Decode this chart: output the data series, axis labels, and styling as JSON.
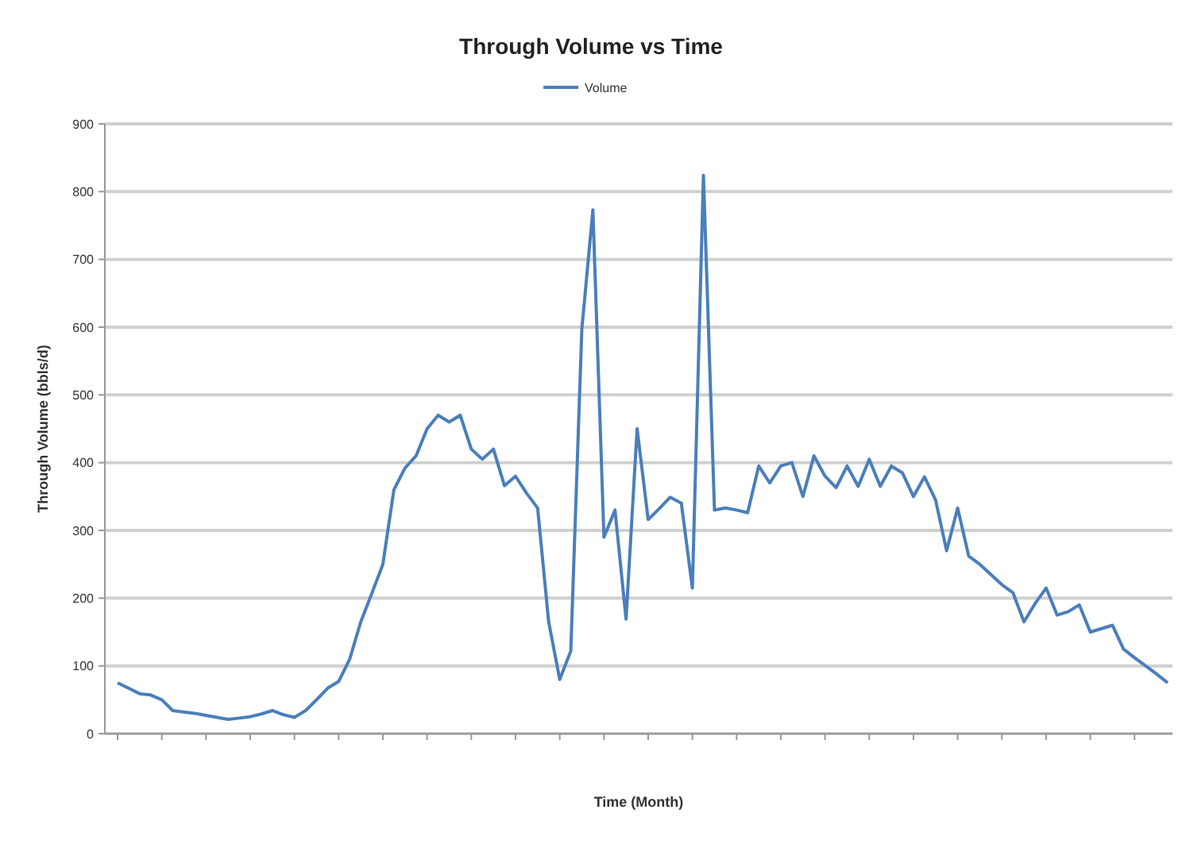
{
  "chart_data": {
    "type": "line",
    "title": "Through Volume vs Time",
    "xlabel": "Time (Month)",
    "ylabel": "Through Volume (bbls/d)",
    "legend": "top",
    "grid": "y",
    "marker": "none",
    "line_style": "solid",
    "categories": [
      null,
      null,
      null,
      null,
      null,
      null,
      null,
      null,
      null,
      null,
      null,
      null,
      null,
      null,
      null,
      null,
      null,
      null,
      null,
      null,
      null,
      null,
      null,
      null,
      null,
      null,
      null,
      null,
      null,
      null,
      null,
      null,
      null,
      null,
      null,
      null,
      null,
      null,
      null,
      null,
      null,
      null,
      null,
      null,
      null,
      null,
      null,
      null,
      null,
      null,
      null,
      null,
      null,
      null,
      null,
      null,
      null,
      null,
      null,
      null,
      null,
      null,
      null,
      null,
      null,
      null,
      null,
      null,
      null,
      null,
      null,
      null,
      null,
      null,
      null,
      null,
      null,
      null,
      null,
      null,
      null,
      null,
      null,
      null,
      null,
      null,
      null,
      null,
      null,
      null,
      null,
      null,
      null,
      null,
      null,
      null
    ],
    "ylim": [
      0,
      900
    ],
    "yticks": [
      0,
      100,
      200,
      300,
      400,
      500,
      600,
      700,
      800,
      900
    ],
    "series": [
      {
        "name": "Volume",
        "color": "#4a7ebb",
        "values": [
          75,
          67,
          59,
          57,
          50,
          34,
          32,
          30,
          27,
          24,
          21,
          23,
          25,
          29,
          34,
          28,
          24,
          34,
          50,
          67,
          77,
          110,
          165,
          207,
          250,
          360,
          392,
          410,
          450,
          470,
          460,
          470,
          420,
          405,
          420,
          366,
          380,
          355,
          333,
          165,
          80,
          122,
          597,
          773,
          290,
          330,
          169,
          450,
          316,
          332,
          349,
          340,
          215,
          824,
          330,
          333,
          330,
          326,
          395,
          370,
          395,
          400,
          350,
          410,
          380,
          363,
          395,
          365,
          405,
          365,
          395,
          385,
          350,
          379,
          345,
          270,
          333,
          262,
          250,
          235,
          220,
          208,
          165,
          192,
          215,
          175,
          180,
          190,
          150,
          155,
          160,
          125,
          112,
          100,
          88,
          75
        ]
      }
    ]
  }
}
